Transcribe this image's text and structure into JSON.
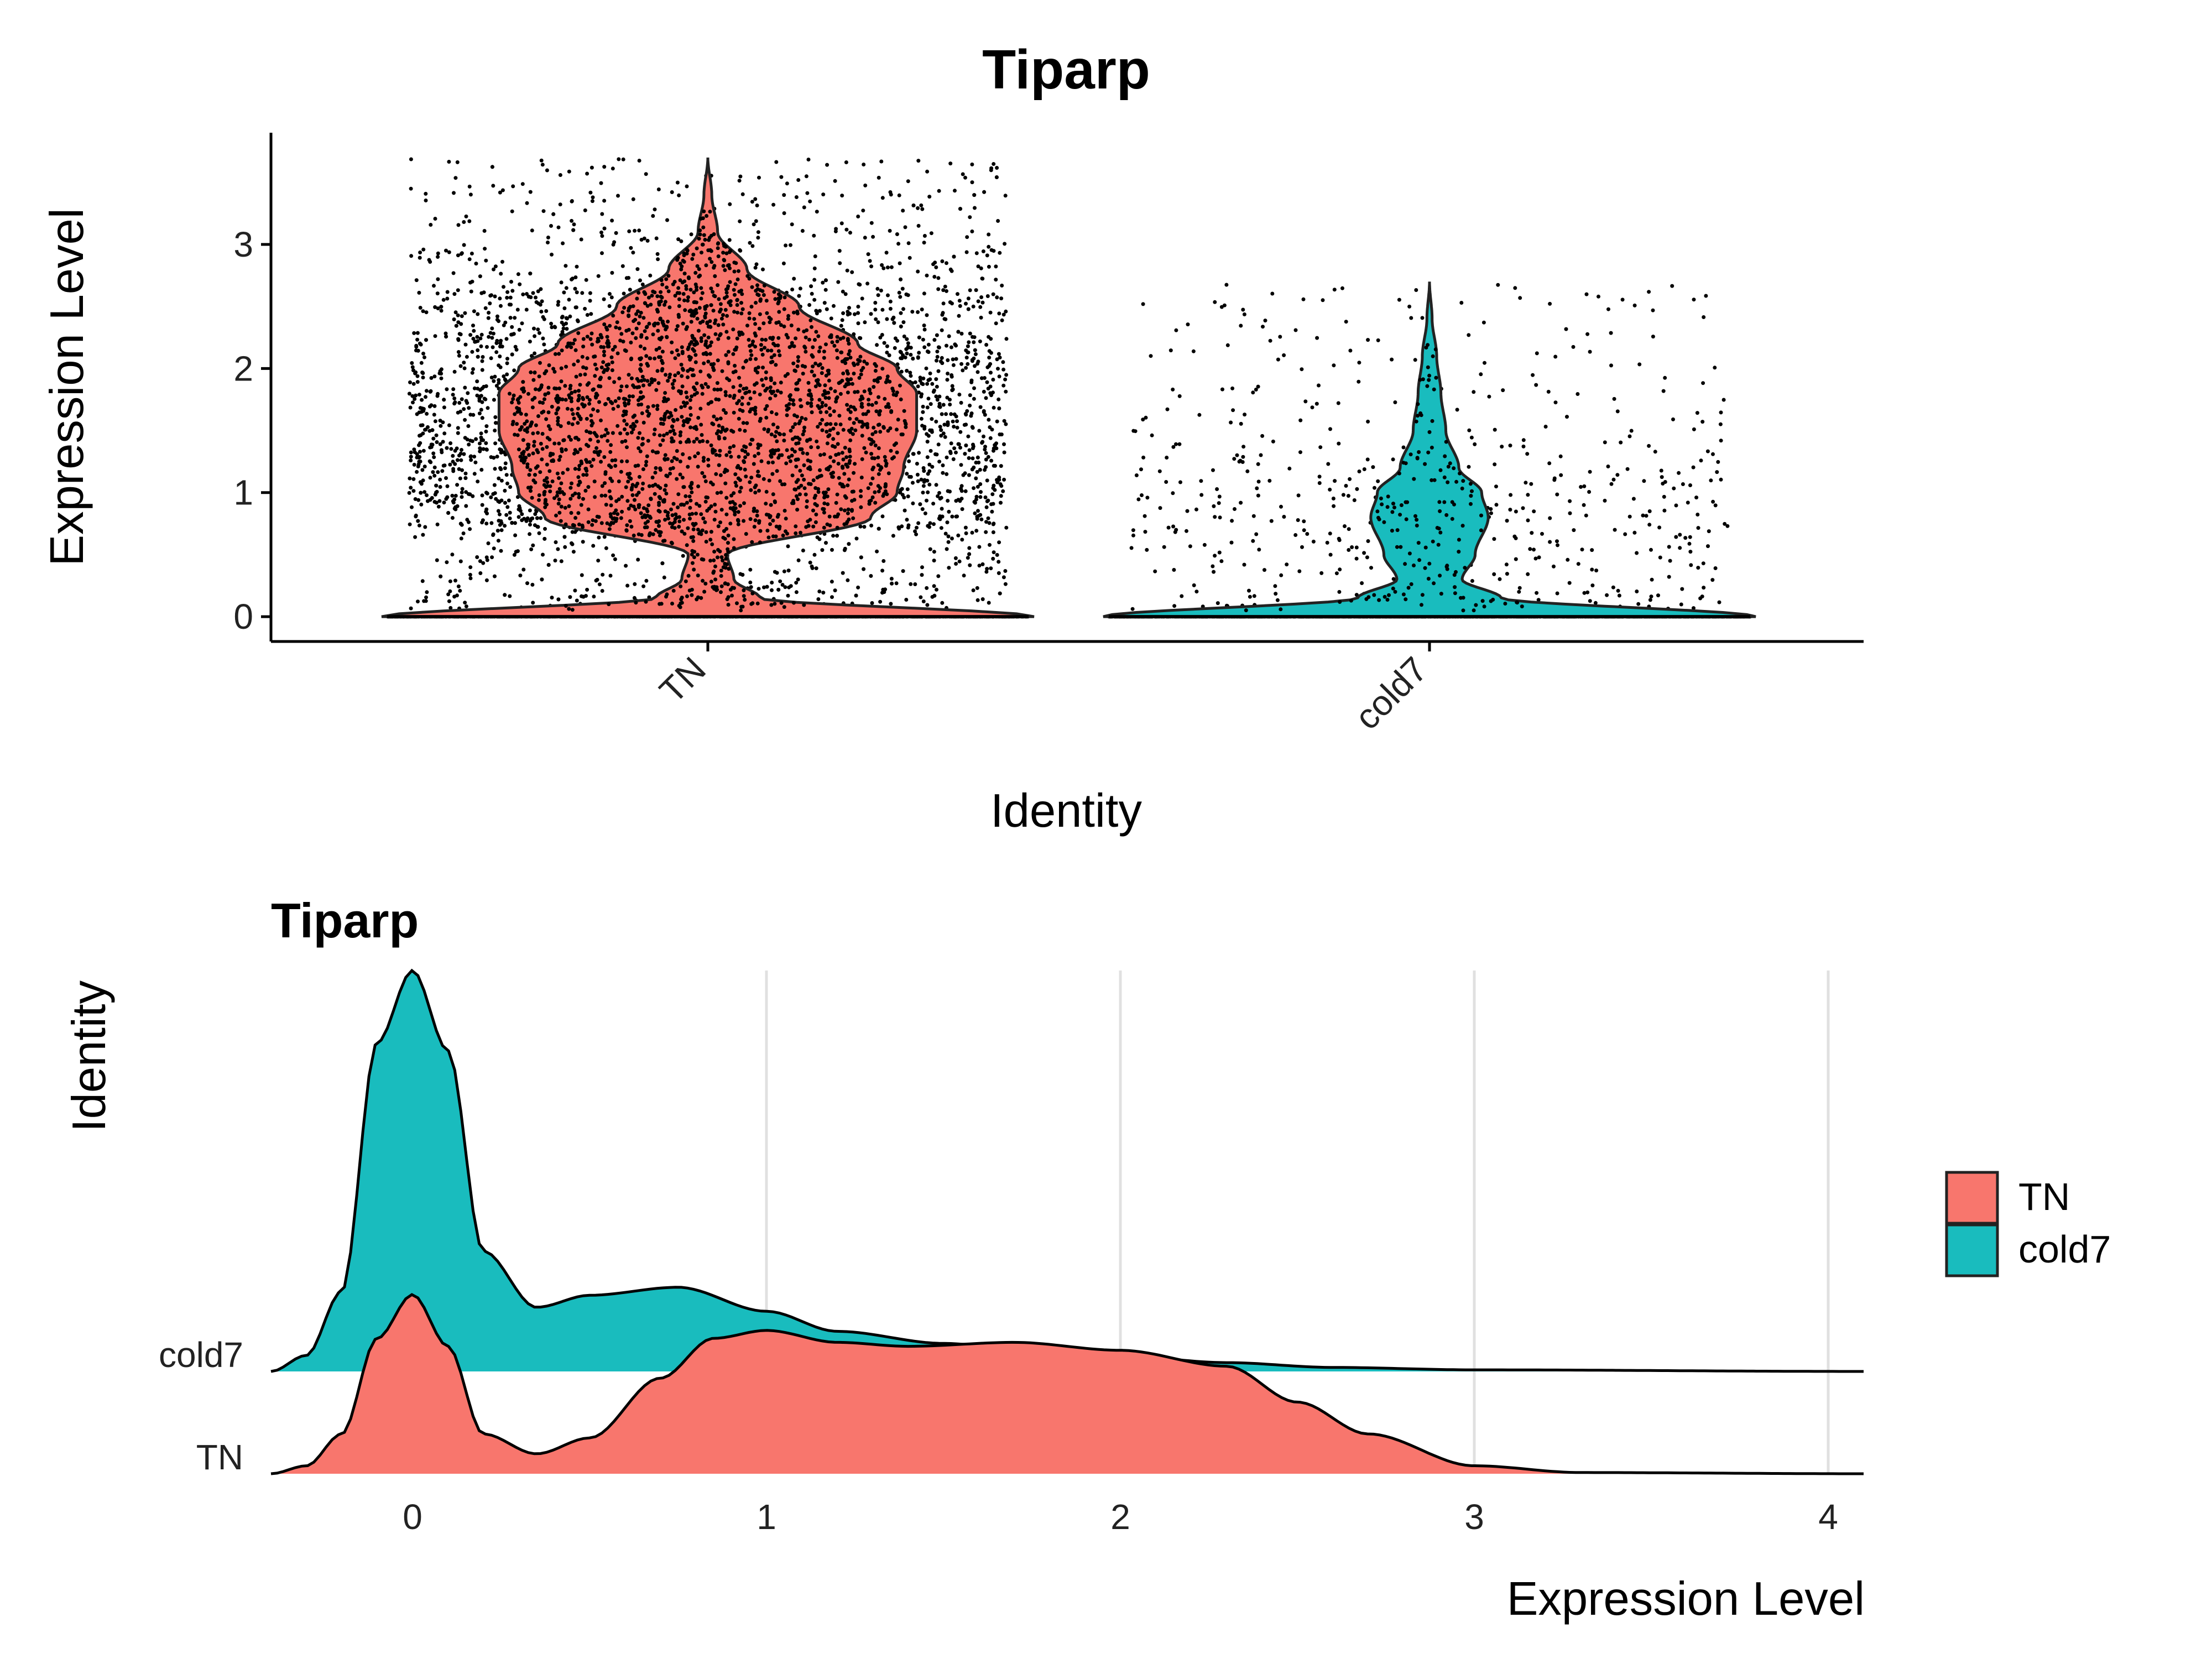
{
  "colors": {
    "TN": "#F8766D",
    "cold7": "#19BCBE",
    "grid": "#e0e0e0",
    "points": "#000000"
  },
  "chart_data": [
    {
      "type": "violin",
      "title": "Tiparp",
      "xlabel": "Identity",
      "ylabel": "Expression Level",
      "categories": [
        "TN",
        "cold7"
      ],
      "y_ticks": [
        "0",
        "1",
        "2",
        "3"
      ],
      "ylim": [
        -0.2,
        3.9
      ],
      "jitter_points": true,
      "series": [
        {
          "name": "TN",
          "color": "#F8766D",
          "max": 3.7,
          "fraction_nonzero": 0.72,
          "density": [
            [
              0,
              1.0
            ],
            [
              0.15,
              0.16
            ],
            [
              0.3,
              0.08
            ],
            [
              0.5,
              0.06
            ],
            [
              0.8,
              0.5
            ],
            [
              1.0,
              0.58
            ],
            [
              1.2,
              0.6
            ],
            [
              1.5,
              0.64
            ],
            [
              1.8,
              0.64
            ],
            [
              2.0,
              0.58
            ],
            [
              2.2,
              0.46
            ],
            [
              2.5,
              0.28
            ],
            [
              2.8,
              0.12
            ],
            [
              3.1,
              0.03
            ],
            [
              3.4,
              0.012
            ],
            [
              3.7,
              0.0
            ]
          ]
        },
        {
          "name": "cold7",
          "color": "#19BCBE",
          "max": 2.7,
          "fraction_nonzero": 0.12,
          "density": [
            [
              0,
              1.0
            ],
            [
              0.15,
              0.22
            ],
            [
              0.3,
              0.1
            ],
            [
              0.5,
              0.14
            ],
            [
              0.8,
              0.18
            ],
            [
              1.0,
              0.16
            ],
            [
              1.2,
              0.09
            ],
            [
              1.5,
              0.05
            ],
            [
              1.8,
              0.035
            ],
            [
              2.1,
              0.022
            ],
            [
              2.4,
              0.008
            ],
            [
              2.7,
              0.0
            ]
          ]
        }
      ]
    },
    {
      "type": "ridgeline",
      "title": "Tiparp",
      "xlabel": "Expression Level",
      "ylabel": "Identity",
      "x_ticks": [
        "0",
        "1",
        "2",
        "3",
        "4"
      ],
      "xlim": [
        -0.4,
        4.1
      ],
      "legend_position": "right",
      "series": [
        {
          "name": "TN",
          "color": "#F8766D",
          "density": [
            [
              -0.4,
              0.0
            ],
            [
              -0.3,
              0.02
            ],
            [
              -0.2,
              0.1
            ],
            [
              -0.1,
              0.34
            ],
            [
              0,
              0.45
            ],
            [
              0.1,
              0.32
            ],
            [
              0.2,
              0.1
            ],
            [
              0.35,
              0.05
            ],
            [
              0.5,
              0.09
            ],
            [
              0.7,
              0.24
            ],
            [
              0.85,
              0.34
            ],
            [
              1.0,
              0.36
            ],
            [
              1.2,
              0.33
            ],
            [
              1.4,
              0.32
            ],
            [
              1.7,
              0.33
            ],
            [
              2.0,
              0.31
            ],
            [
              2.3,
              0.27
            ],
            [
              2.5,
              0.18
            ],
            [
              2.7,
              0.1
            ],
            [
              3.0,
              0.02
            ],
            [
              3.3,
              0.003
            ],
            [
              4.1,
              0.0
            ]
          ]
        },
        {
          "name": "cold7",
          "color": "#19BCBE",
          "density": [
            [
              -0.4,
              0.0
            ],
            [
              -0.3,
              0.04
            ],
            [
              -0.2,
              0.2
            ],
            [
              -0.1,
              0.82
            ],
            [
              0,
              1.0
            ],
            [
              0.1,
              0.8
            ],
            [
              0.2,
              0.3
            ],
            [
              0.35,
              0.16
            ],
            [
              0.5,
              0.19
            ],
            [
              0.75,
              0.21
            ],
            [
              1.0,
              0.15
            ],
            [
              1.2,
              0.1
            ],
            [
              1.5,
              0.07
            ],
            [
              1.8,
              0.045
            ],
            [
              2.0,
              0.038
            ],
            [
              2.3,
              0.022
            ],
            [
              2.6,
              0.01
            ],
            [
              3.0,
              0.004
            ],
            [
              4.1,
              0.0
            ]
          ]
        }
      ]
    }
  ]
}
